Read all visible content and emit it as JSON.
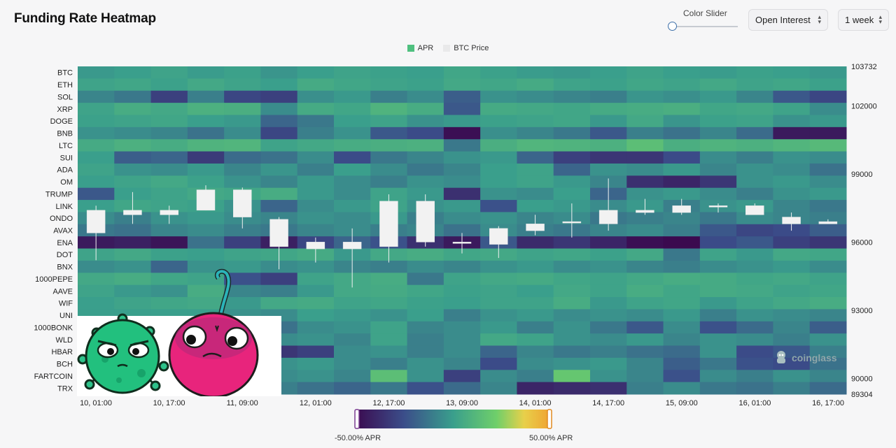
{
  "header": {
    "title": "Funding Rate Heatmap",
    "slider_label": "Color Slider",
    "metric_select": "Open Interest",
    "range_select": "1 week"
  },
  "legend": [
    {
      "label": "APR",
      "color": "#4fc07f"
    },
    {
      "label": "BTC Price",
      "color": "#e9e9ea"
    }
  ],
  "watermark": "coinglass",
  "colorbar": {
    "min_label": "-50.00% APR",
    "max_label": "50.00% APR"
  },
  "colors": {
    "accent": "#3b6ea8",
    "low": "#3b0a4f",
    "high": "#f0a030"
  },
  "chart_data": {
    "type": "heatmap",
    "title": "Funding Rate Heatmap",
    "y_categories": [
      "BTC",
      "ETH",
      "SOL",
      "XRP",
      "DOGE",
      "BNB",
      "LTC",
      "SUI",
      "ADA",
      "OM",
      "TRUMP",
      "LINK",
      "ONDO",
      "AVAX",
      "ENA",
      "DOT",
      "BNX",
      "1000PEPE",
      "AAVE",
      "WIF",
      "UNI",
      "1000BONK",
      "WLD",
      "HBAR",
      "BCH",
      "FARTCOIN",
      "TRX"
    ],
    "x_tick_labels": [
      "10, 01:00",
      "10, 17:00",
      "11, 09:00",
      "12, 01:00",
      "12, 17:00",
      "13, 09:00",
      "14, 01:00",
      "14, 17:00",
      "15, 09:00",
      "16, 01:00",
      "16, 17:00"
    ],
    "color_scale": {
      "min": -50,
      "max": 50,
      "unit": "% APR"
    },
    "right_axis": {
      "label": "BTC Price",
      "ticks": [
        103732,
        102000,
        99000,
        96000,
        93000,
        90000,
        89304
      ],
      "range": [
        89304,
        103732
      ]
    },
    "candles": [
      {
        "open": 97400,
        "close": 96400,
        "high": 97600,
        "low": 95200
      },
      {
        "open": 97200,
        "close": 97400,
        "high": 98200,
        "low": 96800
      },
      {
        "open": 97200,
        "close": 97400,
        "high": 97600,
        "low": 96800
      },
      {
        "open": 97400,
        "close": 98300,
        "high": 98500,
        "low": 97400
      },
      {
        "open": 98300,
        "close": 97100,
        "high": 98400,
        "low": 96600
      },
      {
        "open": 97000,
        "close": 95800,
        "high": 97100,
        "low": 94800
      },
      {
        "open": 96000,
        "close": 95700,
        "high": 96200,
        "low": 95100
      },
      {
        "open": 95700,
        "close": 96000,
        "high": 96600,
        "low": 94000
      },
      {
        "open": 95800,
        "close": 97800,
        "high": 98100,
        "low": 95100
      },
      {
        "open": 96000,
        "close": 97800,
        "high": 98100,
        "low": 95800
      },
      {
        "open": 96000,
        "close": 96000,
        "high": 96400,
        "low": 95500
      },
      {
        "open": 95900,
        "close": 96600,
        "high": 96700,
        "low": 95300
      },
      {
        "open": 96500,
        "close": 96800,
        "high": 97200,
        "low": 96300
      },
      {
        "open": 96900,
        "close": 96900,
        "high": 97700,
        "low": 96200
      },
      {
        "open": 96800,
        "close": 97400,
        "high": 98800,
        "low": 96500
      },
      {
        "open": 97300,
        "close": 97400,
        "high": 97900,
        "low": 97200
      },
      {
        "open": 97300,
        "close": 97600,
        "high": 97900,
        "low": 97200
      },
      {
        "open": 97600,
        "close": 97600,
        "high": 97700,
        "low": 97300
      },
      {
        "open": 97600,
        "close": 97200,
        "high": 97700,
        "low": 97200
      },
      {
        "open": 97100,
        "close": 96800,
        "high": 97300,
        "low": 96500
      },
      {
        "open": 96800,
        "close": 96900,
        "high": 97000,
        "low": 96800
      }
    ],
    "values": [
      [
        -2,
        0,
        2,
        -1,
        1,
        -3,
        0,
        2,
        1,
        0,
        3,
        1,
        -1,
        -2,
        0,
        2,
        0,
        -1,
        1,
        0,
        -2
      ],
      [
        2,
        3,
        1,
        4,
        2,
        0,
        5,
        3,
        2,
        1,
        4,
        3,
        5,
        2,
        1,
        3,
        2,
        4,
        2,
        3,
        1
      ],
      [
        -8,
        -12,
        -30,
        -10,
        -28,
        -30,
        -5,
        -2,
        -10,
        -6,
        -20,
        -4,
        -6,
        -8,
        -10,
        -3,
        -5,
        -2,
        -8,
        -22,
        -28
      ],
      [
        2,
        6,
        4,
        8,
        7,
        -6,
        5,
        3,
        9,
        6,
        -22,
        5,
        4,
        3,
        5,
        6,
        7,
        3,
        4,
        2,
        -6
      ],
      [
        1,
        2,
        3,
        0,
        -2,
        -18,
        -12,
        0,
        2,
        -4,
        -2,
        1,
        2,
        3,
        -2,
        4,
        -3,
        1,
        2,
        -4,
        -2
      ],
      [
        -4,
        -6,
        -8,
        -14,
        -6,
        -28,
        -10,
        -4,
        -22,
        -26,
        -48,
        -5,
        -8,
        -12,
        -22,
        -10,
        -14,
        -8,
        -16,
        -44,
        -44
      ],
      [
        5,
        8,
        6,
        9,
        10,
        2,
        4,
        6,
        7,
        8,
        -12,
        7,
        10,
        9,
        8,
        14,
        7,
        9,
        8,
        10,
        12
      ],
      [
        0,
        -20,
        -18,
        -32,
        -16,
        -14,
        -6,
        -26,
        -12,
        -8,
        -4,
        -2,
        -18,
        -30,
        -34,
        -34,
        -26,
        -6,
        -10,
        -4,
        -6
      ],
      [
        2,
        -4,
        -6,
        -2,
        -8,
        -3,
        -10,
        0,
        -6,
        -12,
        -8,
        0,
        2,
        -18,
        -4,
        -6,
        -2,
        -8,
        -4,
        -6,
        -14
      ],
      [
        0,
        2,
        4,
        1,
        -4,
        -8,
        -2,
        -6,
        -10,
        -4,
        -6,
        0,
        2,
        -2,
        -8,
        -36,
        -40,
        -34,
        -4,
        -2,
        -6
      ],
      [
        -22,
        0,
        2,
        4,
        3,
        6,
        -2,
        -6,
        2,
        -2,
        -36,
        -4,
        -6,
        0,
        -18,
        -4,
        -2,
        -6,
        -10,
        -4,
        -2
      ],
      [
        0,
        3,
        2,
        1,
        -4,
        -18,
        -6,
        -2,
        2,
        -4,
        -2,
        -24,
        0,
        -2,
        -6,
        -2,
        -10,
        -4,
        -2,
        -8,
        -12
      ],
      [
        -6,
        -10,
        -4,
        -2,
        -6,
        -8,
        -4,
        -6,
        -2,
        -10,
        -6,
        -4,
        -8,
        -6,
        -12,
        -10,
        -8,
        -12,
        -6,
        -8,
        -10
      ],
      [
        -12,
        -14,
        -8,
        -6,
        -10,
        -12,
        -8,
        -6,
        -10,
        -8,
        -14,
        -6,
        -10,
        -12,
        -8,
        -6,
        -10,
        -22,
        -28,
        -26,
        -20
      ],
      [
        -44,
        -42,
        -46,
        -14,
        -30,
        -42,
        -28,
        -18,
        -24,
        -36,
        -44,
        -22,
        -38,
        -34,
        -40,
        -48,
        -50,
        -26,
        -22,
        -30,
        -34
      ],
      [
        2,
        4,
        1,
        0,
        2,
        3,
        5,
        -2,
        4,
        6,
        3,
        4,
        2,
        3,
        1,
        4,
        -12,
        2,
        -2,
        4,
        3
      ],
      [
        -6,
        -4,
        -18,
        -4,
        -2,
        -6,
        -4,
        -8,
        -10,
        -6,
        -8,
        -4,
        -2,
        -6,
        -4,
        -8,
        -10,
        -6,
        -4,
        -2,
        -6
      ],
      [
        4,
        6,
        3,
        2,
        -24,
        -30,
        2,
        4,
        6,
        -12,
        2,
        4,
        5,
        3,
        2,
        4,
        6,
        5,
        3,
        4,
        2
      ],
      [
        2,
        -2,
        -4,
        6,
        -8,
        -10,
        -2,
        4,
        5,
        3,
        1,
        2,
        0,
        4,
        2,
        6,
        3,
        5,
        4,
        2,
        3
      ],
      [
        0,
        2,
        3,
        4,
        -2,
        4,
        5,
        2,
        3,
        1,
        0,
        2,
        2,
        6,
        -2,
        2,
        3,
        -2,
        2,
        4,
        6
      ],
      [
        0,
        0,
        0,
        0,
        -4,
        -6,
        0,
        -2,
        -4,
        0,
        -10,
        -4,
        -2,
        -6,
        -4,
        -6,
        -2,
        -10,
        -4,
        -6,
        -8
      ],
      [
        0,
        0,
        0,
        0,
        0,
        -14,
        -6,
        -4,
        2,
        -8,
        -6,
        -2,
        -10,
        -4,
        -12,
        -22,
        -6,
        -24,
        -16,
        -8,
        -20
      ],
      [
        0,
        0,
        0,
        0,
        0,
        -6,
        -4,
        -8,
        2,
        -10,
        -6,
        4,
        2,
        -4,
        -6,
        -2,
        -8,
        -4,
        -6,
        -10,
        -4
      ],
      [
        0,
        0,
        0,
        0,
        0,
        -34,
        -30,
        -6,
        -4,
        -10,
        -6,
        -18,
        -8,
        -12,
        -10,
        -14,
        -16,
        -4,
        -26,
        -22,
        -10
      ],
      [
        0,
        0,
        0,
        0,
        0,
        -4,
        -2,
        -6,
        -10,
        -4,
        -8,
        -26,
        -6,
        -4,
        -2,
        -8,
        -20,
        -12,
        -24,
        -26,
        -14
      ],
      [
        0,
        0,
        0,
        0,
        0,
        -6,
        -4,
        -8,
        14,
        -4,
        -30,
        -6,
        -10,
        18,
        -4,
        -8,
        -24,
        -6,
        -10,
        -4,
        -8
      ],
      [
        0,
        0,
        0,
        0,
        0,
        -10,
        -14,
        -18,
        -12,
        -24,
        -16,
        -8,
        -40,
        -38,
        -36,
        -10,
        -6,
        -12,
        -14,
        -10,
        -16
      ]
    ]
  }
}
